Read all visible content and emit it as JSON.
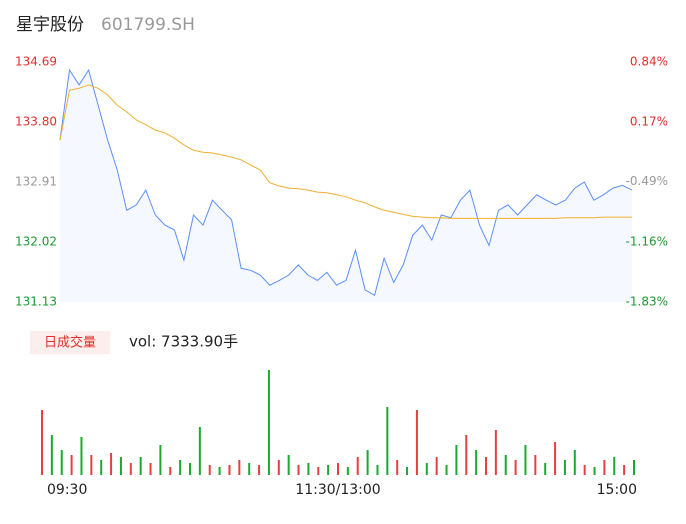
{
  "header": {
    "title": "星宇股份",
    "code": "601799.SH"
  },
  "chart_data": {
    "type": "line",
    "categories": [
      "09:30",
      null,
      null,
      null,
      null,
      null,
      null,
      null,
      null,
      null,
      null,
      null,
      null,
      null,
      null,
      null,
      null,
      null,
      null,
      null,
      null,
      null,
      null,
      null,
      null,
      null,
      null,
      null,
      null,
      null,
      "11:30/13:00",
      null,
      null,
      null,
      null,
      null,
      null,
      null,
      null,
      null,
      null,
      null,
      null,
      null,
      null,
      null,
      null,
      null,
      null,
      null,
      null,
      null,
      null,
      null,
      null,
      null,
      null,
      null,
      null,
      null,
      "15:00"
    ],
    "series": [
      {
        "color": "#5b8ff9",
        "values": [
          133.53,
          134.57,
          134.35,
          134.57,
          134.05,
          133.53,
          133.09,
          132.49,
          132.57,
          132.79,
          132.42,
          132.27,
          132.2,
          131.75,
          132.42,
          132.27,
          132.64,
          132.49,
          132.35,
          131.63,
          131.6,
          131.53,
          131.38,
          131.45,
          131.53,
          131.68,
          131.53,
          131.45,
          131.57,
          131.38,
          131.45,
          131.9,
          131.31,
          131.23,
          131.78,
          131.42,
          131.68,
          132.12,
          132.27,
          132.05,
          132.42,
          132.38,
          132.64,
          132.79,
          132.27,
          131.97,
          132.49,
          132.57,
          132.42,
          132.57,
          132.72,
          132.64,
          132.57,
          132.64,
          132.82,
          132.91,
          132.64,
          132.72,
          132.82,
          132.86,
          132.79
        ]
      },
      {
        "color": "#f0b030",
        "values": [
          133.53,
          134.27,
          134.3,
          134.35,
          134.3,
          134.2,
          134.05,
          133.95,
          133.83,
          133.76,
          133.68,
          133.64,
          133.56,
          133.46,
          133.38,
          133.35,
          133.34,
          133.31,
          133.28,
          133.24,
          133.16,
          133.09,
          132.9,
          132.85,
          132.82,
          132.81,
          132.79,
          132.76,
          132.75,
          132.72,
          132.69,
          132.64,
          132.6,
          132.54,
          132.49,
          132.46,
          132.43,
          132.4,
          132.39,
          132.38,
          132.38,
          132.37,
          132.37,
          132.37,
          132.37,
          132.37,
          132.37,
          132.37,
          132.37,
          132.37,
          132.37,
          132.37,
          132.37,
          132.38,
          132.38,
          132.38,
          132.38,
          132.39,
          132.39,
          132.39,
          132.39
        ]
      }
    ],
    "ylim": [
      131.13,
      134.69
    ],
    "yticks": [
      134.69,
      {
        "value": 133.8,
        "label": "133.80"
      },
      132.91,
      132.02,
      131.13
    ],
    "y2lim": [
      -1.83,
      0.84
    ],
    "y2ticks": [
      {
        "value": 0.84,
        "label": "0.84%"
      },
      {
        "value": 0.17,
        "label": "0.17%"
      },
      {
        "value": -0.49,
        "label": "-0.49%"
      },
      {
        "value": -1.16,
        "label": "-1.16%"
      },
      {
        "value": -1.83,
        "label": "-1.83%"
      }
    ],
    "ytick_colors": [
      "#e0302c",
      "#e0302c",
      "#999999",
      "#1a9a30",
      "#1a9a30"
    ],
    "volume": {
      "label": "日成交量",
      "annotation": "vol: 7333.90手",
      "ylim": [
        0,
        110
      ],
      "values": [
        65,
        40,
        25,
        20,
        38,
        20,
        15,
        22,
        18,
        12,
        18,
        12,
        30,
        8,
        15,
        12,
        48,
        10,
        8,
        10,
        15,
        12,
        10,
        105,
        15,
        20,
        10,
        12,
        8,
        10,
        12,
        8,
        18,
        25,
        10,
        68,
        15,
        8,
        65,
        12,
        18,
        10,
        30,
        40,
        25,
        18,
        45,
        20,
        15,
        30,
        20,
        12,
        33,
        15,
        25,
        10,
        8,
        15,
        18,
        10,
        15
      ],
      "colors": [
        "#e84040",
        "#1aaa30",
        "#1aaa30",
        "#e84040",
        "#1aaa30",
        "#e84040",
        "#1aaa30",
        "#e84040",
        "#1aaa30",
        "#e84040",
        "#1aaa30",
        "#e84040",
        "#1aaa30",
        "#e84040",
        "#1aaa30",
        "#1aaa30",
        "#1aaa30",
        "#e84040",
        "#1aaa30",
        "#e84040",
        "#e84040",
        "#1aaa30",
        "#e84040",
        "#1aaa30",
        "#e84040",
        "#1aaa30",
        "#e84040",
        "#1aaa30",
        "#e84040",
        "#1aaa30",
        "#e84040",
        "#1aaa30",
        "#e84040",
        "#1aaa30",
        "#1aaa30",
        "#1aaa30",
        "#e84040",
        "#1aaa30",
        "#e84040",
        "#1aaa30",
        "#e84040",
        "#1aaa30",
        "#1aaa30",
        "#e84040",
        "#1aaa30",
        "#e84040",
        "#e84040",
        "#1aaa30",
        "#e84040",
        "#1aaa30",
        "#e84040",
        "#1aaa30",
        "#e84040",
        "#1aaa30",
        "#1aaa30",
        "#e84040",
        "#1aaa30",
        "#e84040",
        "#1aaa30",
        "#e84040",
        "#1aaa30"
      ]
    }
  }
}
